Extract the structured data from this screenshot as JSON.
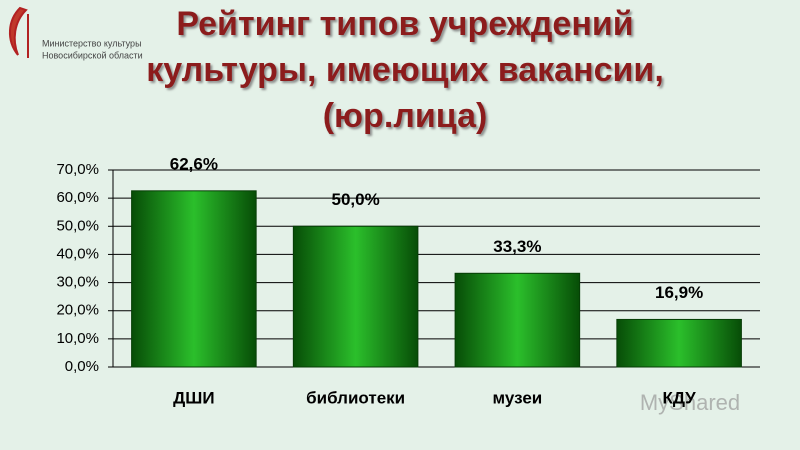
{
  "logo_text": [
    "Министерство культуры",
    "Новосибирской области"
  ],
  "watermark": "MyShared",
  "chart_data": {
    "type": "bar",
    "title": [
      "Рейтинг типов учреждений",
      "культуры, имеющих вакансии,",
      "(юр.лица)"
    ],
    "categories": [
      "ДШИ",
      "библиотеки",
      "музеи",
      "КДУ"
    ],
    "values": [
      62.6,
      50.0,
      33.3,
      16.9
    ],
    "value_labels": [
      "62,6%",
      "50,0%",
      "33,3%",
      "16,9%"
    ],
    "color": "#1a8c1a",
    "ylim": [
      0,
      70
    ],
    "yticks": [
      {
        "value": 0,
        "label": "0,0%"
      },
      {
        "value": 10,
        "label": "10,0%"
      },
      {
        "value": 20,
        "label": "20,0%"
      },
      {
        "value": 30,
        "label": "30,0%"
      },
      {
        "value": 40,
        "label": "40,0%"
      },
      {
        "value": 50,
        "label": "50,0%"
      },
      {
        "value": 60,
        "label": "60,0%"
      },
      {
        "value": 70,
        "label": "70,0%"
      }
    ],
    "grid": true
  }
}
